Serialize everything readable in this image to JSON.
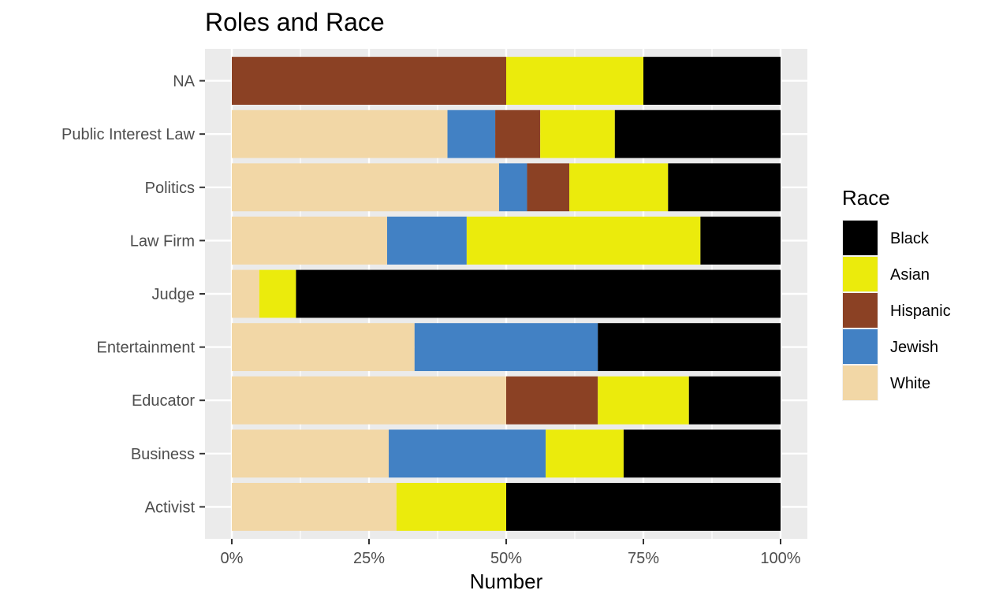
{
  "chart_data": {
    "type": "bar",
    "orientation": "horizontal",
    "stacking": "percent",
    "title": "Roles and Race",
    "xlabel": "Number",
    "ylabel": "",
    "xlim": [
      0,
      1
    ],
    "x_ticks": [
      0,
      0.25,
      0.5,
      0.75,
      1
    ],
    "x_tick_labels": [
      "0%",
      "25%",
      "50%",
      "75%",
      "100%"
    ],
    "grid": true,
    "categories": [
      "Activist",
      "Business",
      "Educator",
      "Entertainment",
      "Judge",
      "Law Firm",
      "Politics",
      "Public Interest Law",
      "NA"
    ],
    "stack_order": [
      "White",
      "Jewish",
      "Hispanic",
      "Asian",
      "Black"
    ],
    "series": [
      {
        "name": "White",
        "color": "#F2D7A6",
        "values": [
          0.3,
          0.286,
          0.5,
          0.333,
          0.05,
          0.283,
          0.487,
          0.393,
          0.0
        ]
      },
      {
        "name": "Jewish",
        "color": "#4281C4",
        "values": [
          0.0,
          0.286,
          0.0,
          0.334,
          0.0,
          0.145,
          0.051,
          0.087,
          0.0
        ]
      },
      {
        "name": "Hispanic",
        "color": "#8B4124",
        "values": [
          0.0,
          0.0,
          0.167,
          0.0,
          0.0,
          0.0,
          0.077,
          0.082,
          0.5
        ]
      },
      {
        "name": "Asian",
        "color": "#EBEB0C",
        "values": [
          0.2,
          0.142,
          0.166,
          0.0,
          0.067,
          0.426,
          0.18,
          0.136,
          0.25
        ]
      },
      {
        "name": "Black",
        "color": "#000000",
        "values": [
          0.5,
          0.286,
          0.167,
          0.333,
          0.883,
          0.146,
          0.205,
          0.302,
          0.25
        ]
      }
    ],
    "legend": {
      "title": "Race",
      "placement": "right",
      "items": [
        "Black",
        "Asian",
        "Hispanic",
        "Jewish",
        "White"
      ]
    },
    "colors": {
      "panel_background": "#EBEBEB",
      "grid_line": "#FFFFFF",
      "tick_text": "#4D4D4D",
      "tick_mark": "#333333"
    }
  }
}
